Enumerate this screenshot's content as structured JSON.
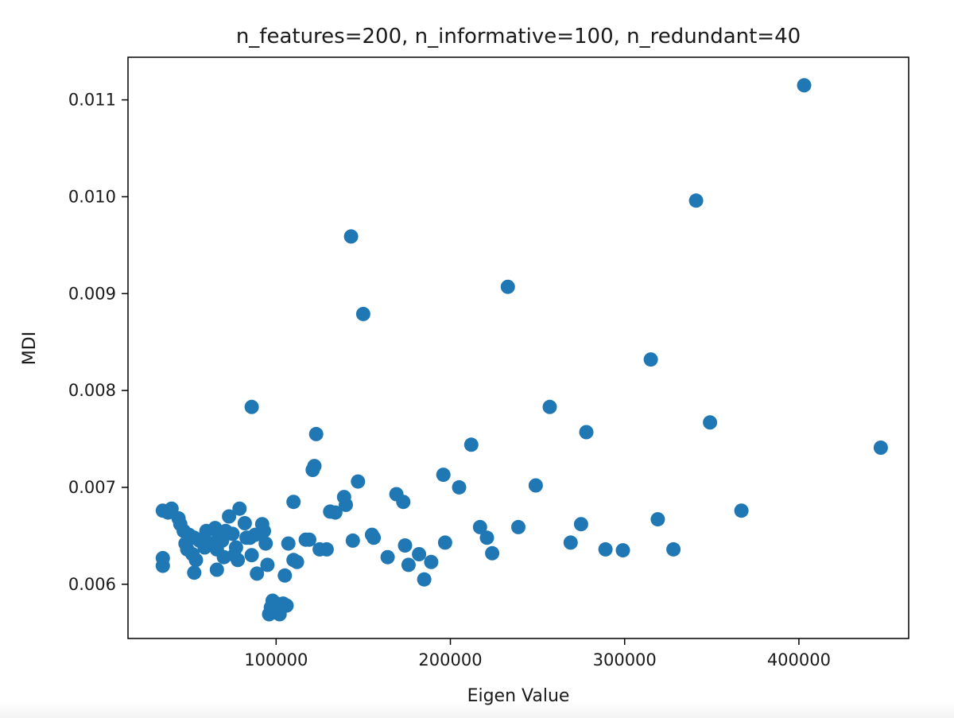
{
  "chart_data": {
    "type": "scatter",
    "title": "n_features=200, n_informative=100, n_redundant=40",
    "xlabel": "Eigen Value",
    "ylabel": "MDI",
    "xlim": [
      15000,
      463000
    ],
    "ylim": [
      0.00544,
      0.01144
    ],
    "xticks": [
      100000,
      200000,
      300000,
      400000
    ],
    "yticks": [
      0.006,
      0.007,
      0.008,
      0.009,
      0.01,
      0.011
    ],
    "xtick_labels": [
      "100000",
      "200000",
      "300000",
      "400000"
    ],
    "ytick_labels": [
      "0.006",
      "0.007",
      "0.008",
      "0.009",
      "0.010",
      "0.011"
    ],
    "grid": false,
    "legend": "none",
    "marker_color": "#1f77b4",
    "series": [
      {
        "x": [
          403000,
          341000,
          143000,
          233000,
          150000,
          315000,
          86000,
          257000,
          349000,
          123000,
          278000,
          447000,
          212000,
          122000,
          121000,
          196000,
          147000,
          205000,
          249000,
          169000,
          139000,
          173000,
          110000,
          131000,
          140000,
          134000,
          367000,
          35000,
          40000,
          38000,
          44000,
          79000,
          73000,
          82000,
          92000,
          93000,
          60000,
          65000,
          71000,
          75000,
          88000,
          83000,
          155000,
          156000,
          47000,
          50000,
          53000,
          56000,
          62000,
          67000,
          69000,
          77000,
          85000,
          94000,
          119000,
          117000,
          217000,
          221000,
          239000,
          275000,
          319000,
          269000,
          289000,
          299000,
          328000,
          224000,
          197000,
          174000,
          176000,
          182000,
          189000,
          164000,
          185000,
          144000,
          107000,
          110000,
          112000,
          125000,
          129000,
          86000,
          78000,
          76000,
          70000,
          66000,
          59000,
          54000,
          49000,
          48000,
          52000,
          45000,
          35000,
          35000,
          53000,
          66000,
          89000,
          95000,
          105000,
          98000,
          100000,
          103000,
          97000,
          101000,
          99000,
          104000,
          102000,
          96000,
          106000,
          98000,
          102000
        ],
        "y": [
          0.01115,
          0.00996,
          0.00959,
          0.00907,
          0.00879,
          0.00832,
          0.00783,
          0.00783,
          0.00767,
          0.00755,
          0.00757,
          0.00741,
          0.00744,
          0.00722,
          0.00718,
          0.00713,
          0.00706,
          0.007,
          0.00702,
          0.00693,
          0.0069,
          0.00685,
          0.00685,
          0.00675,
          0.00682,
          0.00674,
          0.00676,
          0.00676,
          0.00678,
          0.00674,
          0.00668,
          0.00678,
          0.0067,
          0.00663,
          0.00662,
          0.00655,
          0.00655,
          0.00658,
          0.00655,
          0.00652,
          0.00651,
          0.00648,
          0.00651,
          0.00648,
          0.00655,
          0.00651,
          0.00648,
          0.00645,
          0.00642,
          0.00648,
          0.00645,
          0.00638,
          0.00648,
          0.00642,
          0.00646,
          0.00646,
          0.00659,
          0.00648,
          0.00659,
          0.00662,
          0.00667,
          0.00643,
          0.00636,
          0.00635,
          0.00636,
          0.00632,
          0.00643,
          0.0064,
          0.0062,
          0.00631,
          0.00623,
          0.00628,
          0.00605,
          0.00645,
          0.00642,
          0.00625,
          0.00623,
          0.00636,
          0.00636,
          0.0063,
          0.00625,
          0.0063,
          0.00628,
          0.00636,
          0.00638,
          0.00625,
          0.00636,
          0.00642,
          0.00631,
          0.00662,
          0.00627,
          0.00619,
          0.00612,
          0.00615,
          0.00611,
          0.0062,
          0.00609,
          0.00583,
          0.0058,
          0.00577,
          0.00576,
          0.00574,
          0.00571,
          0.0058,
          0.00575,
          0.00569,
          0.00578,
          0.00572,
          0.00569
        ]
      }
    ]
  }
}
